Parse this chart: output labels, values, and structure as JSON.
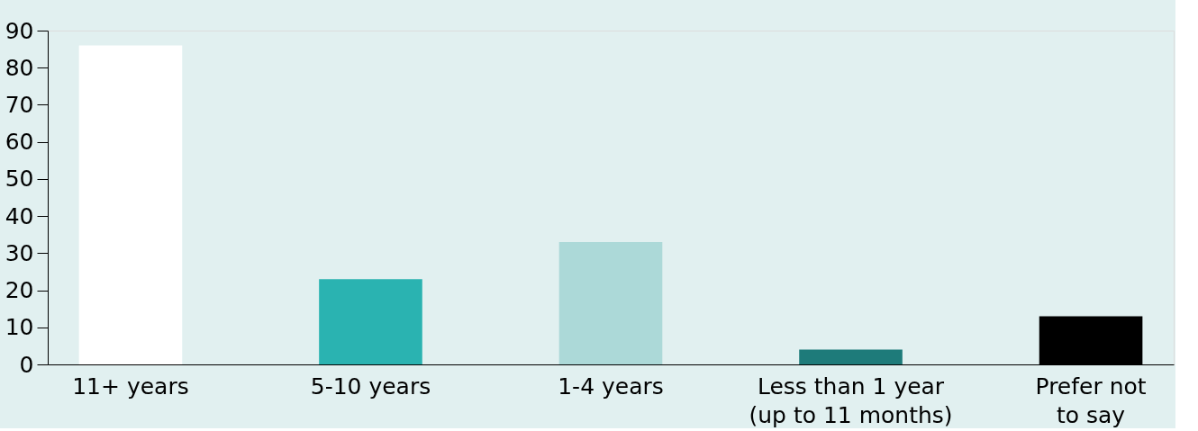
{
  "chart_data": {
    "type": "bar",
    "categories": [
      "11+ years",
      "5-10 years",
      "1-4 years",
      "Less than 1 year\n(up to 11 months)",
      "Prefer not\nto say"
    ],
    "values": [
      86,
      23,
      33,
      4,
      13
    ],
    "colors": [
      "#ffffff",
      "#2ab3b1",
      "#acd9d8",
      "#1e7b7a",
      "#000000"
    ],
    "ylim": [
      0,
      90
    ],
    "yticks": [
      0,
      10,
      20,
      30,
      40,
      50,
      60,
      70,
      80,
      90
    ],
    "grid": false,
    "legend": false
  }
}
